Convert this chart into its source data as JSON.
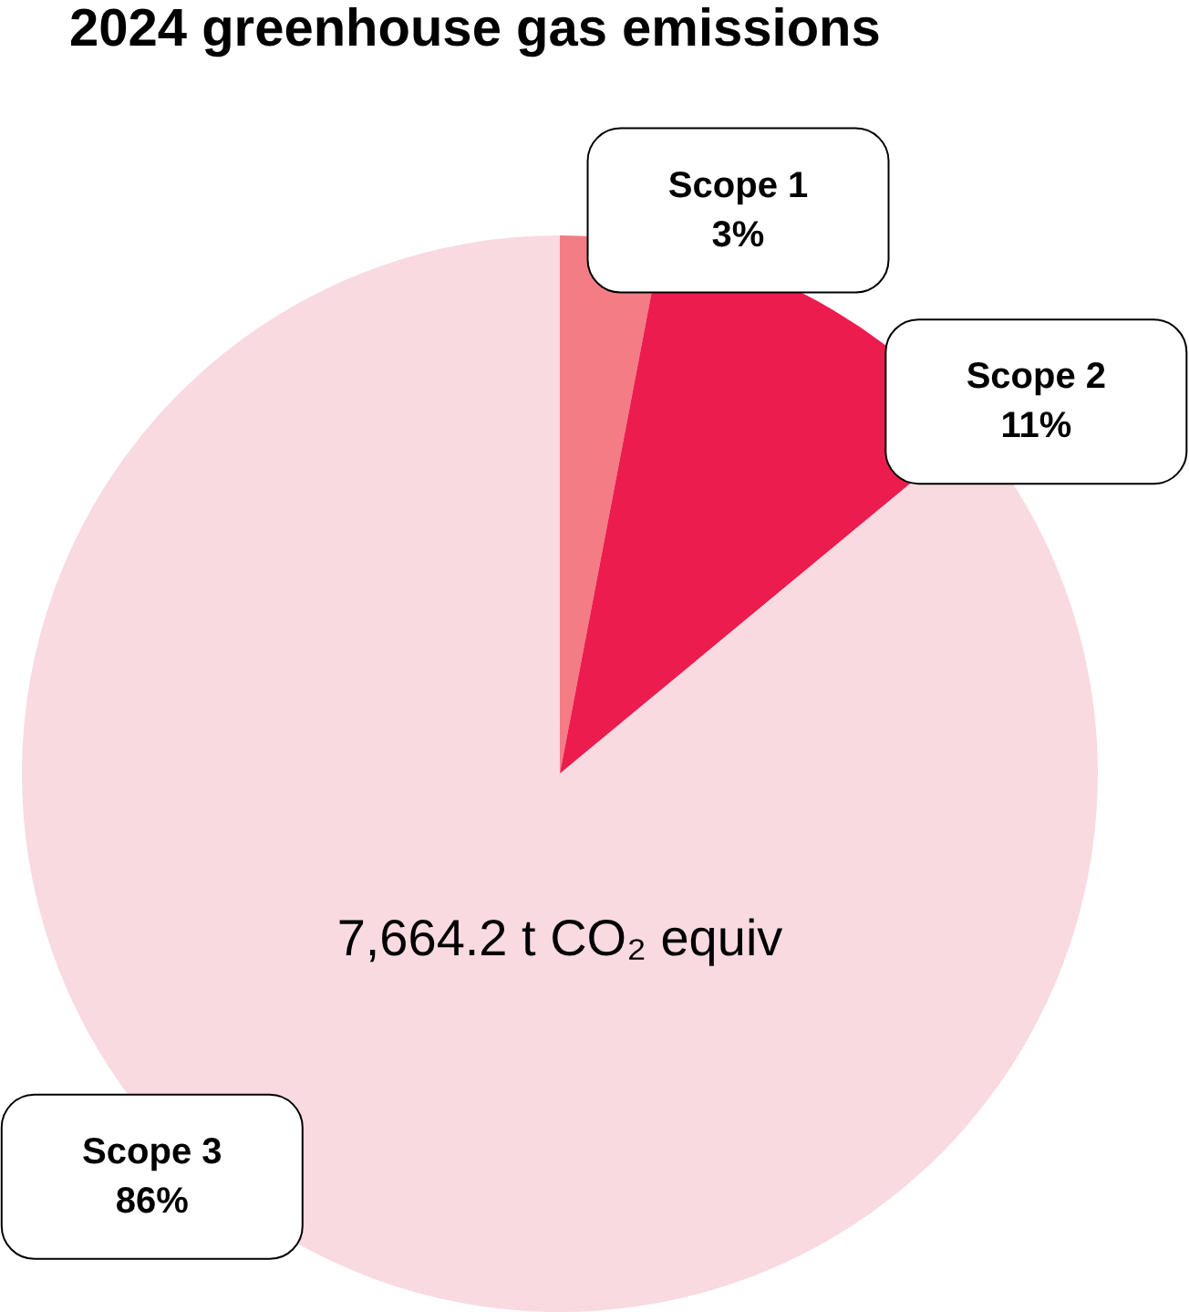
{
  "chart_data": {
    "type": "pie",
    "title": "2024 greenhouse gas emissions",
    "categories": [
      "Scope 1",
      "Scope 2",
      "Scope 3"
    ],
    "values": [
      3,
      11,
      86
    ],
    "value_labels": [
      "3%",
      "11%",
      "86%"
    ],
    "colors": [
      "#f47c85",
      "#ec1c4e",
      "#f8dae0"
    ],
    "annotations": [
      "7,664.2 t CO₂ equiv"
    ],
    "legend": false
  }
}
